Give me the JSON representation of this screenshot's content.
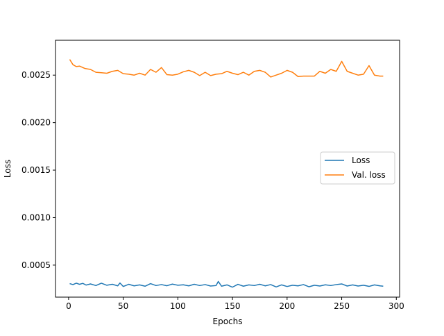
{
  "chart_data": {
    "type": "line",
    "title": "",
    "xlabel": "Epochs",
    "ylabel": "Loss",
    "xlim": [
      -12,
      303
    ],
    "ylim": [
      0.000163,
      0.002867
    ],
    "xticks": [
      0,
      50,
      100,
      150,
      200,
      250,
      300
    ],
    "xtick_labels": [
      "0",
      "50",
      "100",
      "150",
      "200",
      "250",
      "300"
    ],
    "yticks": [
      0.0005,
      0.001,
      0.0015,
      0.002,
      0.0025
    ],
    "ytick_labels": [
      "0.0005",
      "0.0010",
      "0.0015",
      "0.0020",
      "0.0025"
    ],
    "grid": false,
    "legend_position": "center-right",
    "series": [
      {
        "name": "Loss",
        "color": "#1f77b4",
        "x": [
          1,
          4,
          7,
          10,
          13,
          16,
          20,
          25,
          30,
          35,
          40,
          45,
          47,
          50,
          55,
          60,
          65,
          70,
          75,
          80,
          85,
          90,
          95,
          100,
          105,
          110,
          115,
          120,
          125,
          130,
          135,
          137,
          140,
          145,
          150,
          155,
          160,
          165,
          170,
          175,
          180,
          185,
          190,
          195,
          200,
          205,
          210,
          215,
          220,
          225,
          230,
          235,
          240,
          245,
          250,
          255,
          260,
          265,
          270,
          275,
          280,
          285,
          288
        ],
        "y": [
          0.000305,
          0.000295,
          0.00031,
          0.000298,
          0.000308,
          0.00029,
          0.000302,
          0.000285,
          0.00031,
          0.000288,
          0.000298,
          0.000282,
          0.000312,
          0.000275,
          0.000298,
          0.000282,
          0.000292,
          0.000278,
          0.000305,
          0.000285,
          0.000295,
          0.000283,
          0.0003,
          0.000288,
          0.000293,
          0.000282,
          0.000298,
          0.000285,
          0.000295,
          0.00028,
          0.000285,
          0.000328,
          0.000278,
          0.000292,
          0.000268,
          0.000298,
          0.000278,
          0.000292,
          0.000285,
          0.000298,
          0.000282,
          0.000295,
          0.00027,
          0.000292,
          0.000275,
          0.000288,
          0.000282,
          0.000295,
          0.000272,
          0.000288,
          0.00028,
          0.000293,
          0.000285,
          0.000295,
          0.000302,
          0.00028,
          0.000292,
          0.00028,
          0.000288,
          0.000276,
          0.000292,
          0.000282,
          0.000278
        ]
      },
      {
        "name": "Val. loss",
        "color": "#ff7f0e",
        "x": [
          1,
          4,
          7,
          10,
          15,
          20,
          25,
          30,
          35,
          40,
          45,
          50,
          55,
          60,
          65,
          70,
          75,
          80,
          85,
          90,
          95,
          100,
          105,
          110,
          115,
          120,
          125,
          130,
          135,
          140,
          145,
          150,
          155,
          160,
          165,
          170,
          175,
          180,
          185,
          190,
          195,
          200,
          205,
          210,
          215,
          220,
          225,
          230,
          235,
          240,
          245,
          250,
          255,
          260,
          265,
          270,
          275,
          280,
          285,
          288
        ],
        "y": [
          0.002665,
          0.00261,
          0.00259,
          0.002595,
          0.00257,
          0.00256,
          0.00253,
          0.002525,
          0.00252,
          0.00254,
          0.00255,
          0.002515,
          0.00251,
          0.0025,
          0.00252,
          0.0025,
          0.00256,
          0.00253,
          0.00258,
          0.002505,
          0.0025,
          0.00251,
          0.002535,
          0.00255,
          0.00253,
          0.002495,
          0.00253,
          0.002495,
          0.00251,
          0.002515,
          0.00254,
          0.00252,
          0.002505,
          0.00253,
          0.0025,
          0.00254,
          0.00255,
          0.00253,
          0.00248,
          0.0025,
          0.00252,
          0.00255,
          0.00253,
          0.002485,
          0.00249,
          0.00249,
          0.00249,
          0.00254,
          0.00252,
          0.00256,
          0.00254,
          0.002645,
          0.00254,
          0.00252,
          0.0025,
          0.00251,
          0.0026,
          0.0025,
          0.00249,
          0.00249
        ]
      }
    ]
  }
}
